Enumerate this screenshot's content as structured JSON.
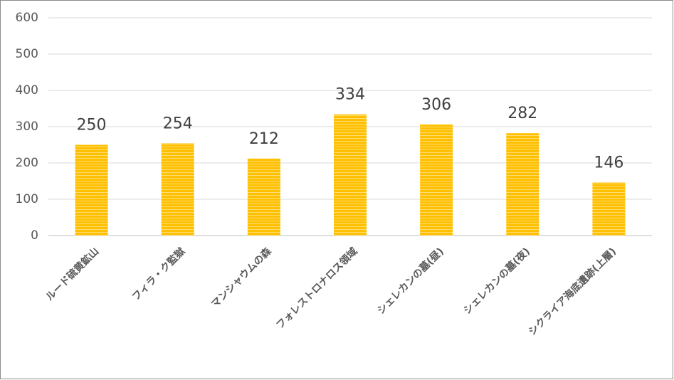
{
  "chart_data": {
    "type": "bar",
    "categories": [
      "ルード硫黄鉱山",
      "フィラ・ク監獄",
      "マンシャウムの森",
      "フォレストロナロス領域",
      "シェレカンの墓(昼)",
      "シェレカンの墓(夜)",
      "シクライア海底遺跡(上層)"
    ],
    "values": [
      250,
      254,
      212,
      334,
      306,
      282,
      146
    ],
    "color": "#ffc000",
    "ylim": [
      0,
      600
    ],
    "yticks": [
      0,
      100,
      200,
      300,
      400,
      500,
      600
    ],
    "grid": true
  }
}
